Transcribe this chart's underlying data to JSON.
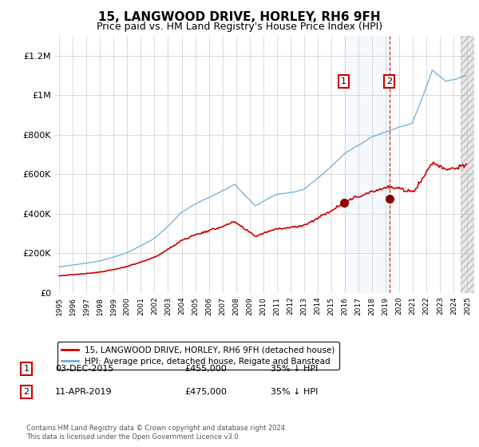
{
  "title": "15, LANGWOOD DRIVE, HORLEY, RH6 9FH",
  "subtitle": "Price paid vs. HM Land Registry's House Price Index (HPI)",
  "title_fontsize": 11,
  "subtitle_fontsize": 9,
  "ylim": [
    0,
    1300000
  ],
  "yticks": [
    0,
    200000,
    400000,
    600000,
    800000,
    1000000,
    1200000
  ],
  "ytick_labels": [
    "£0",
    "£200K",
    "£400K",
    "£600K",
    "£800K",
    "£1M",
    "£1.2M"
  ],
  "line_color_hpi": "#6baed6",
  "line_color_price": "#cc0000",
  "transaction1_date": 2015.92,
  "transaction1_price": 455000,
  "transaction2_date": 2019.27,
  "transaction2_price": 475000,
  "legend_label1": "15, LANGWOOD DRIVE, HORLEY, RH6 9FH (detached house)",
  "legend_label2": "HPI: Average price, detached house, Reigate and Banstead",
  "table_rows": [
    {
      "num": "1",
      "date": "03-DEC-2015",
      "price": "£455,000",
      "change": "35% ↓ HPI"
    },
    {
      "num": "2",
      "date": "11-APR-2019",
      "price": "£475,000",
      "change": "35% ↓ HPI"
    }
  ],
  "footer": "Contains HM Land Registry data © Crown copyright and database right 2024.\nThis data is licensed under the Open Government Licence v3.0.",
  "background_color": "#ffffff",
  "grid_color": "#cccccc"
}
